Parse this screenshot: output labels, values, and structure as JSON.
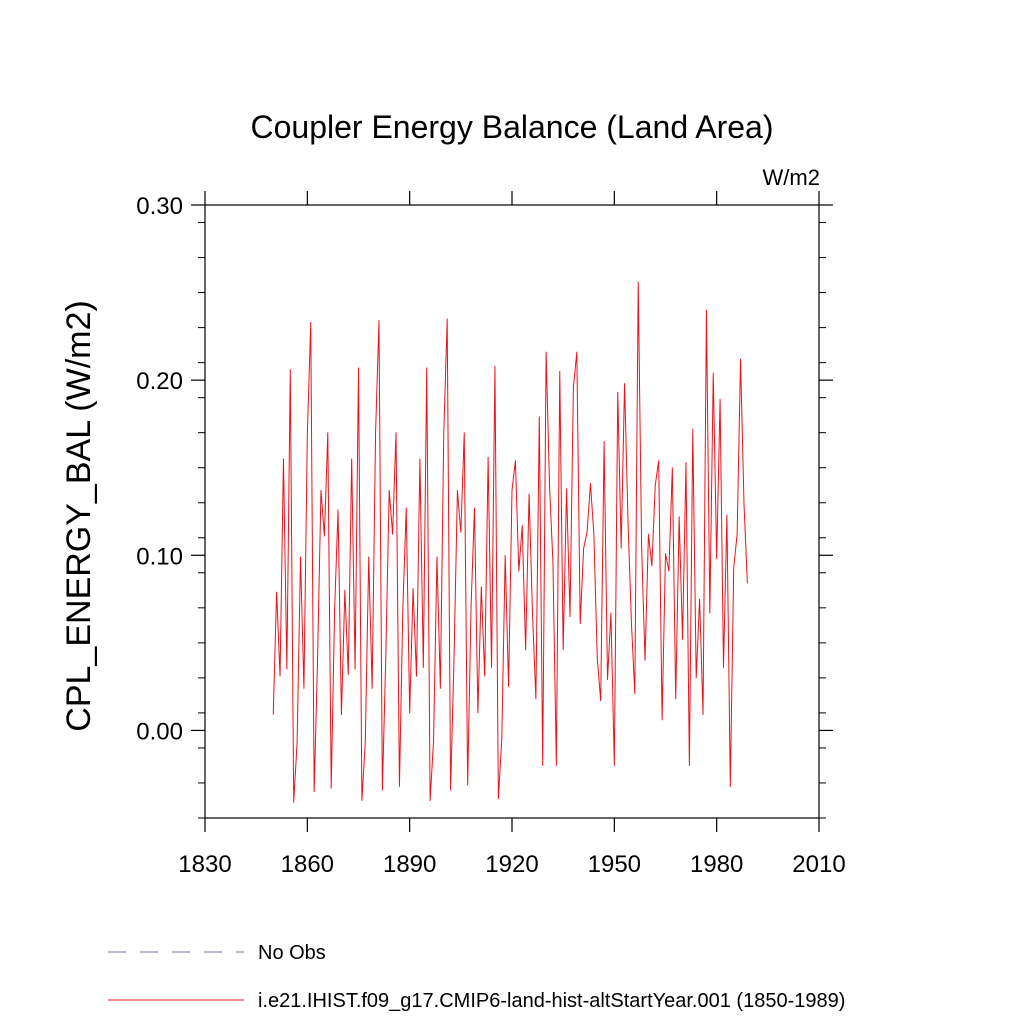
{
  "chart_data": {
    "type": "line",
    "title": "Coupler Energy Balance (Land Area)",
    "units": "W/m2",
    "ylabel": "CPL_ENERGY_BAL  (W/m2)",
    "xlabel": "",
    "xlim": [
      1830,
      2010
    ],
    "ylim": [
      -0.05,
      0.3
    ],
    "x_ticks": [
      1830,
      1860,
      1890,
      1920,
      1950,
      1980,
      2010
    ],
    "x_tick_labels": [
      "1830",
      "1860",
      "1890",
      "1920",
      "1950",
      "1980",
      "2010"
    ],
    "y_ticks": [
      0.0,
      0.1,
      0.2,
      0.3
    ],
    "y_tick_labels": [
      "0.00",
      "0.10",
      "0.20",
      "0.30"
    ],
    "grid": false,
    "legend_position": "bottom-left",
    "series": [
      {
        "name": "No Obs",
        "color": "#7b6fb0",
        "dash": "dashed",
        "x": [],
        "y": []
      },
      {
        "name": "i.e21.IHIST.f09_g17.CMIP6-land-hist-altStartYear.001 (1850-1989)",
        "color": "#e8141c",
        "dash": "solid",
        "x": [
          1850,
          1851,
          1852,
          1853,
          1854,
          1855,
          1856,
          1857,
          1858,
          1859,
          1860,
          1861,
          1862,
          1863,
          1864,
          1865,
          1866,
          1867,
          1868,
          1869,
          1870,
          1871,
          1872,
          1873,
          1874,
          1875,
          1876,
          1877,
          1878,
          1879,
          1880,
          1881,
          1882,
          1883,
          1884,
          1885,
          1886,
          1887,
          1888,
          1889,
          1890,
          1891,
          1892,
          1893,
          1894,
          1895,
          1896,
          1897,
          1898,
          1899,
          1900,
          1901,
          1902,
          1903,
          1904,
          1905,
          1906,
          1907,
          1908,
          1909,
          1910,
          1911,
          1912,
          1913,
          1914,
          1915,
          1916,
          1917,
          1918,
          1919,
          1920,
          1921,
          1922,
          1923,
          1924,
          1925,
          1926,
          1927,
          1928,
          1929,
          1930,
          1931,
          1932,
          1933,
          1934,
          1935,
          1936,
          1937,
          1938,
          1939,
          1940,
          1941,
          1942,
          1943,
          1944,
          1945,
          1946,
          1947,
          1948,
          1949,
          1950,
          1951,
          1952,
          1953,
          1954,
          1955,
          1956,
          1957,
          1958,
          1959,
          1960,
          1961,
          1962,
          1963,
          1964,
          1965,
          1966,
          1967,
          1968,
          1969,
          1970,
          1971,
          1972,
          1973,
          1974,
          1975,
          1976,
          1977,
          1978,
          1979,
          1980,
          1981,
          1982,
          1983,
          1984,
          1985,
          1986,
          1987,
          1988,
          1989
        ],
        "y": [
          0.009,
          0.079,
          0.031,
          0.155,
          0.035,
          0.206,
          -0.041,
          -0.007,
          0.099,
          0.024,
          0.169,
          0.233,
          -0.035,
          0.041,
          0.137,
          0.111,
          0.17,
          -0.033,
          0.069,
          0.126,
          0.009,
          0.08,
          0.032,
          0.155,
          0.035,
          0.207,
          -0.04,
          -0.006,
          0.099,
          0.024,
          0.17,
          0.234,
          -0.034,
          0.042,
          0.137,
          0.112,
          0.17,
          -0.032,
          0.07,
          0.127,
          0.01,
          0.081,
          0.031,
          0.155,
          0.036,
          0.207,
          -0.04,
          -0.006,
          0.099,
          0.024,
          0.17,
          0.235,
          -0.034,
          0.041,
          0.137,
          0.113,
          0.17,
          -0.031,
          0.071,
          0.127,
          0.01,
          0.082,
          0.031,
          0.156,
          0.036,
          0.208,
          -0.039,
          -0.005,
          0.1,
          0.025,
          0.137,
          0.154,
          0.091,
          0.117,
          0.046,
          0.135,
          0.067,
          0.018,
          0.179,
          -0.02,
          0.216,
          0.14,
          0.096,
          -0.02,
          0.205,
          0.046,
          0.138,
          0.065,
          0.196,
          0.216,
          0.061,
          0.104,
          0.113,
          0.141,
          0.112,
          0.041,
          0.017,
          0.165,
          0.029,
          0.067,
          -0.02,
          0.193,
          0.104,
          0.198,
          0.12,
          0.062,
          0.021,
          0.256,
          0.105,
          0.04,
          0.112,
          0.094,
          0.14,
          0.154,
          0.006,
          0.101,
          0.091,
          0.15,
          0.018,
          0.122,
          0.052,
          0.153,
          -0.02,
          0.172,
          0.03,
          0.075,
          0.009,
          0.24,
          0.067,
          0.204,
          0.098,
          0.189,
          0.036,
          0.123,
          -0.032,
          0.093,
          0.112,
          0.212,
          0.13,
          0.084
        ]
      }
    ]
  }
}
